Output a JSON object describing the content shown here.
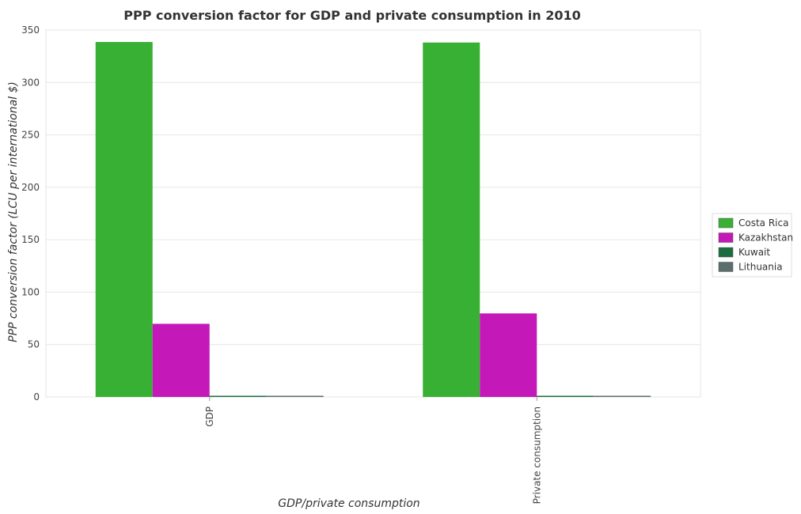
{
  "chart_data": {
    "type": "bar",
    "title": "PPP conversion factor for GDP and private consumption in 2010",
    "xlabel": "GDP/private consumption",
    "ylabel": "PPP conversion factor (LCU per international $)",
    "categories": [
      "GDP",
      " Private consumption"
    ],
    "ylim": [
      0,
      350
    ],
    "yticks": [
      0,
      50,
      100,
      150,
      200,
      250,
      300,
      350
    ],
    "grid": true,
    "legend_position": "right",
    "series": [
      {
        "name": "Costa Rica",
        "color": "#37b034",
        "values": [
          338.6,
          338.1
        ]
      },
      {
        "name": "Kazakhstan",
        "color": "#c418b8",
        "values": [
          69.8,
          79.7
        ]
      },
      {
        "name": "Kuwait",
        "color": "#1c6d40",
        "values": [
          0.27,
          0.3
        ]
      },
      {
        "name": "Lithuania",
        "color": "#5a6e6e",
        "values": [
          0.56,
          0.64
        ]
      }
    ]
  }
}
